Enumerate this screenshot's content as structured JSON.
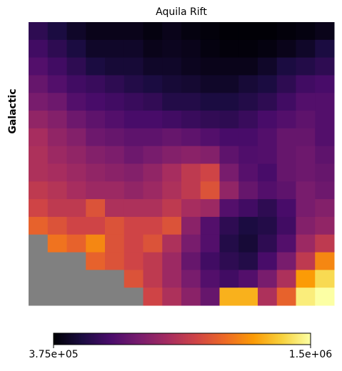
{
  "chart_data": {
    "type": "heatmap",
    "title": "Aquila Rift",
    "ylabel": "Galactic",
    "colormap": "inferno",
    "nan_color": "#808080",
    "clim": [
      375000,
      1500000
    ],
    "cticks": [
      {
        "value": 375000,
        "label": "3.75e+05"
      },
      {
        "value": 1500000,
        "label": "1.5e+06"
      }
    ],
    "z": [
      [
        550000,
        500000,
        450000,
        420000,
        420000,
        420000,
        400000,
        420000,
        400000,
        390000,
        380000,
        380000,
        380000,
        390000,
        400000,
        420000
      ],
      [
        600000,
        550000,
        500000,
        450000,
        450000,
        450000,
        420000,
        430000,
        420000,
        400000,
        390000,
        390000,
        400000,
        420000,
        450000,
        500000
      ],
      [
        650000,
        600000,
        550000,
        500000,
        480000,
        480000,
        450000,
        450000,
        430000,
        420000,
        420000,
        420000,
        450000,
        500000,
        520000,
        550000
      ],
      [
        700000,
        650000,
        600000,
        580000,
        550000,
        520000,
        500000,
        480000,
        470000,
        450000,
        450000,
        480000,
        500000,
        550000,
        600000,
        620000
      ],
      [
        750000,
        720000,
        650000,
        620000,
        600000,
        580000,
        560000,
        520000,
        520000,
        500000,
        500000,
        520000,
        550000,
        600000,
        650000,
        650000
      ],
      [
        820000,
        780000,
        720000,
        680000,
        650000,
        620000,
        620000,
        600000,
        580000,
        560000,
        550000,
        580000,
        620000,
        650000,
        680000,
        650000
      ],
      [
        880000,
        820000,
        780000,
        720000,
        700000,
        680000,
        680000,
        700000,
        680000,
        650000,
        620000,
        620000,
        650000,
        700000,
        700000,
        650000
      ],
      [
        900000,
        850000,
        820000,
        780000,
        760000,
        720000,
        750000,
        780000,
        800000,
        780000,
        680000,
        640000,
        650000,
        700000,
        720000,
        680000
      ],
      [
        900000,
        880000,
        850000,
        820000,
        800000,
        780000,
        820000,
        880000,
        950000,
        1000000,
        750000,
        660000,
        620000,
        700000,
        720000,
        700000
      ],
      [
        950000,
        920000,
        880000,
        850000,
        850000,
        820000,
        850000,
        900000,
        950000,
        1050000,
        820000,
        700000,
        650000,
        680000,
        750000,
        720000
      ],
      [
        1000000,
        950000,
        950000,
        1050000,
        900000,
        900000,
        900000,
        950000,
        880000,
        850000,
        650000,
        600000,
        550000,
        620000,
        750000,
        780000
      ],
      [
        1100000,
        1050000,
        1000000,
        1000000,
        1050000,
        1000000,
        1000000,
        1050000,
        800000,
        650000,
        550000,
        500000,
        520000,
        600000,
        780000,
        820000
      ],
      [
        null,
        1150000,
        1100000,
        1200000,
        1050000,
        1000000,
        1050000,
        900000,
        750000,
        650000,
        520000,
        480000,
        550000,
        650000,
        850000,
        950000
      ],
      [
        null,
        null,
        null,
        1100000,
        1050000,
        1000000,
        950000,
        850000,
        700000,
        600000,
        550000,
        520000,
        620000,
        750000,
        950000,
        1200000
      ],
      [
        null,
        null,
        null,
        null,
        null,
        1050000,
        950000,
        850000,
        750000,
        650000,
        600000,
        650000,
        750000,
        900000,
        1250000,
        1400000
      ],
      [
        null,
        null,
        null,
        null,
        null,
        null,
        1000000,
        900000,
        800000,
        700000,
        1300000,
        1300000,
        900000,
        1100000,
        1450000,
        1500000
      ]
    ]
  }
}
